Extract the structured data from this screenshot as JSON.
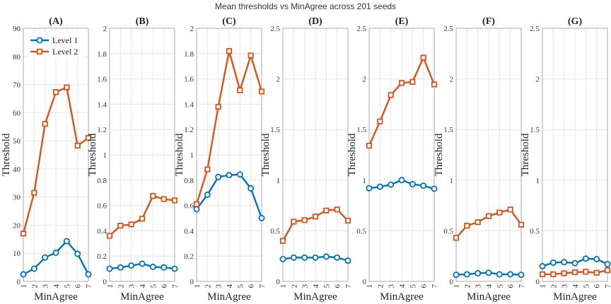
{
  "figure_title": "Mean thresholds vs MinAgree across 201 seeds",
  "colors": {
    "level1": "#0072BD",
    "level2": "#D95319"
  },
  "legend": {
    "level1": "Level 1",
    "level2": "Level 2"
  },
  "chart_data": [
    {
      "panel": "(A)",
      "type": "line",
      "title": "(A)",
      "xlabel": "MinAgree",
      "ylabel": "Threshold",
      "x": [
        1,
        2,
        3,
        4,
        5,
        6,
        7
      ],
      "xlim": [
        1,
        7
      ],
      "ylim": [
        0,
        90
      ],
      "yticks": [
        0,
        10,
        20,
        30,
        40,
        50,
        60,
        70,
        80,
        90
      ],
      "ytick_labels": [
        "0",
        "10",
        "20",
        "30",
        "40",
        "50",
        "60",
        "70",
        "80",
        "90"
      ],
      "legend_position": "top-left",
      "series": [
        {
          "name": "Level 1",
          "marker": "circle",
          "values": [
            2.5,
            4.5,
            8.5,
            10.2,
            14.3,
            9.8,
            2.5
          ]
        },
        {
          "name": "Level 2",
          "marker": "square",
          "values": [
            17,
            31.5,
            56,
            67.3,
            69,
            48.3,
            51
          ]
        }
      ]
    },
    {
      "panel": "(B)",
      "type": "line",
      "title": "(B)",
      "xlabel": "MinAgree",
      "ylabel": "Threshold",
      "x": [
        1,
        2,
        3,
        4,
        5,
        6,
        7
      ],
      "xlim": [
        1,
        7
      ],
      "ylim": [
        0,
        2
      ],
      "yticks": [
        0,
        0.2,
        0.4,
        0.6,
        0.8,
        1.0,
        1.2,
        1.4,
        1.6,
        1.8,
        2.0
      ],
      "ytick_labels": [
        "0",
        "0.2",
        "0.4",
        "0.6",
        "0.8",
        "1",
        "1.2",
        "1.4",
        "1.6",
        "1.8",
        "2"
      ],
      "series": [
        {
          "name": "Level 1",
          "marker": "circle",
          "values": [
            0.1,
            0.11,
            0.125,
            0.14,
            0.115,
            0.11,
            0.1
          ]
        },
        {
          "name": "Level 2",
          "marker": "square",
          "values": [
            0.36,
            0.44,
            0.45,
            0.495,
            0.675,
            0.65,
            0.64
          ]
        }
      ]
    },
    {
      "panel": "(C)",
      "type": "line",
      "title": "(C)",
      "xlabel": "MinAgree",
      "ylabel": "Threshold",
      "x": [
        1,
        2,
        3,
        4,
        5,
        6,
        7
      ],
      "xlim": [
        1,
        7
      ],
      "ylim": [
        0,
        2
      ],
      "yticks": [
        0,
        0.2,
        0.4,
        0.6,
        0.8,
        1.0,
        1.2,
        1.4,
        1.6,
        1.8,
        2.0
      ],
      "ytick_labels": [
        "0",
        "0.2",
        "0.4",
        "0.6",
        "0.8",
        "1",
        "1.2",
        "1.4",
        "1.6",
        "1.8",
        "2"
      ],
      "series": [
        {
          "name": "Level 1",
          "marker": "circle",
          "values": [
            0.57,
            0.685,
            0.825,
            0.84,
            0.845,
            0.735,
            0.5
          ]
        },
        {
          "name": "Level 2",
          "marker": "square",
          "values": [
            0.61,
            0.885,
            1.38,
            1.82,
            1.51,
            1.785,
            1.5
          ]
        }
      ]
    },
    {
      "panel": "(D)",
      "type": "line",
      "title": "(D)",
      "xlabel": "MinAgree",
      "ylabel": "Threshold",
      "x": [
        1,
        2,
        3,
        4,
        5,
        6,
        7
      ],
      "xlim": [
        1,
        7
      ],
      "ylim": [
        0,
        2.5
      ],
      "yticks": [
        0,
        0.5,
        1.0,
        1.5,
        2.0,
        2.5
      ],
      "ytick_labels": [
        "0",
        "0.5",
        "1",
        "1.5",
        "2",
        "2.5"
      ],
      "series": [
        {
          "name": "Level 1",
          "marker": "circle",
          "values": [
            0.22,
            0.235,
            0.235,
            0.235,
            0.245,
            0.235,
            0.205
          ]
        },
        {
          "name": "Level 2",
          "marker": "square",
          "values": [
            0.4,
            0.59,
            0.605,
            0.64,
            0.7,
            0.71,
            0.6
          ]
        }
      ]
    },
    {
      "panel": "(E)",
      "type": "line",
      "title": "(E)",
      "xlabel": "MinAgree",
      "ylabel": "Threshold",
      "x": [
        1,
        2,
        3,
        4,
        5,
        6,
        7
      ],
      "xlim": [
        1,
        7
      ],
      "ylim": [
        0,
        2.5
      ],
      "yticks": [
        0,
        0.5,
        1.0,
        1.5,
        2.0,
        2.5
      ],
      "ytick_labels": [
        "0",
        "0.5",
        "1",
        "1.5",
        "2",
        "2.5"
      ],
      "series": [
        {
          "name": "Level 1",
          "marker": "circle",
          "values": [
            0.92,
            0.935,
            0.955,
            1.0,
            0.96,
            0.945,
            0.915
          ]
        },
        {
          "name": "Level 2",
          "marker": "square",
          "values": [
            1.34,
            1.58,
            1.84,
            1.96,
            1.97,
            2.21,
            1.945
          ]
        }
      ]
    },
    {
      "panel": "(F)",
      "type": "line",
      "title": "(F)",
      "xlabel": "MinAgree",
      "ylabel": "Threshold",
      "x": [
        1,
        2,
        3,
        4,
        5,
        6,
        7
      ],
      "xlim": [
        1,
        7
      ],
      "ylim": [
        0,
        2.5
      ],
      "yticks": [
        0,
        0.5,
        1.0,
        1.5,
        2.0,
        2.5
      ],
      "ytick_labels": [
        "0",
        "0.5",
        "1",
        "1.5",
        "2",
        "2.5"
      ],
      "series": [
        {
          "name": "Level 1",
          "marker": "circle",
          "values": [
            0.065,
            0.07,
            0.08,
            0.085,
            0.07,
            0.07,
            0.065
          ]
        },
        {
          "name": "Level 2",
          "marker": "square",
          "values": [
            0.43,
            0.55,
            0.585,
            0.645,
            0.68,
            0.71,
            0.56
          ]
        }
      ]
    },
    {
      "panel": "(G)",
      "type": "line",
      "title": "(G)",
      "xlabel": "MinAgree",
      "ylabel": "Threshold",
      "x": [
        1,
        2,
        3,
        4,
        5,
        6,
        7
      ],
      "xlim": [
        1,
        7
      ],
      "ylim": [
        0,
        2.5
      ],
      "yticks": [
        0,
        0.5,
        1.0,
        1.5,
        2.0,
        2.5
      ],
      "ytick_labels": [
        "0",
        "0.5",
        "1",
        "1.5",
        "2",
        "2.5"
      ],
      "series": [
        {
          "name": "Level 1",
          "marker": "circle",
          "values": [
            0.15,
            0.185,
            0.19,
            0.18,
            0.225,
            0.22,
            0.17
          ]
        },
        {
          "name": "Level 2",
          "marker": "square",
          "values": [
            0.07,
            0.07,
            0.08,
            0.09,
            0.095,
            0.085,
            0.11
          ]
        }
      ]
    }
  ]
}
